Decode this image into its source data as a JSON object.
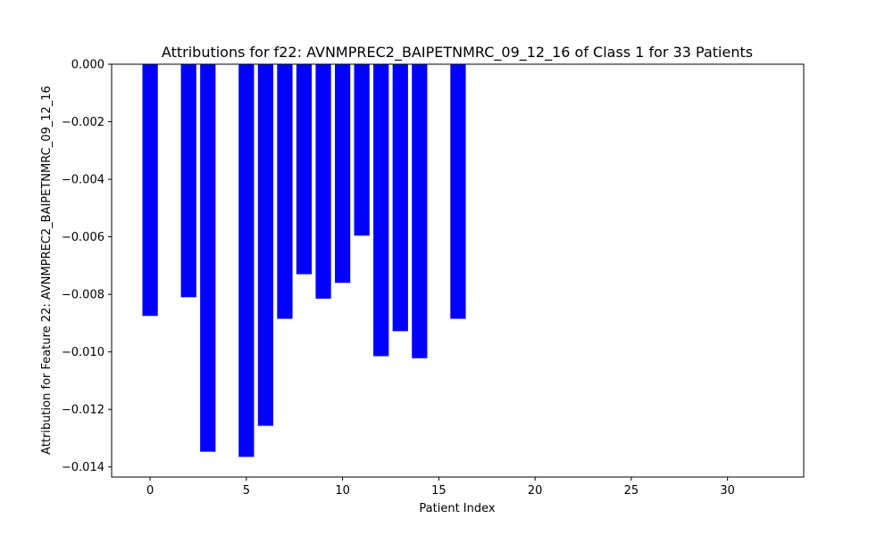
{
  "chart_data": {
    "type": "bar",
    "title": "Attributions for f22: AVNMPREC2_BAIPETNMRC_09_12_16 of Class 1 for 33 Patients",
    "xlabel": "Patient Index",
    "ylabel": "Attribution for Feature 22: AVNMPREC2_BAIPETNMRC_09_12_16",
    "xlim": [
      -2,
      33.96
    ],
    "ylim": [
      -0.01435,
      0.0
    ],
    "xticks": [
      0,
      5,
      10,
      15,
      20,
      25,
      30
    ],
    "yticks": [
      0.0,
      -0.002,
      -0.004,
      -0.006,
      -0.008,
      -0.01,
      -0.012,
      -0.014
    ],
    "ytick_labels": [
      "0.000",
      "−0.002",
      "−0.004",
      "−0.006",
      "−0.008",
      "−0.010",
      "−0.012",
      "−0.014"
    ],
    "bar_width": 0.8,
    "color": "#0000ff",
    "grid": false,
    "bars": [
      {
        "x": 0,
        "value": -0.00875
      },
      {
        "x": 1,
        "value": 0.0
      },
      {
        "x": 2,
        "value": -0.0081
      },
      {
        "x": 3,
        "value": -0.01347
      },
      {
        "x": 4,
        "value": 0.0
      },
      {
        "x": 5,
        "value": -0.01365
      },
      {
        "x": 6,
        "value": -0.01257
      },
      {
        "x": 7,
        "value": -0.00885
      },
      {
        "x": 8,
        "value": -0.0073
      },
      {
        "x": 9,
        "value": -0.00815
      },
      {
        "x": 10,
        "value": -0.0076
      },
      {
        "x": 11,
        "value": -0.00596
      },
      {
        "x": 12,
        "value": -0.01015
      },
      {
        "x": 13,
        "value": -0.00928
      },
      {
        "x": 14,
        "value": -0.01022
      },
      {
        "x": 15,
        "value": 0.0
      },
      {
        "x": 16,
        "value": -0.00885
      },
      {
        "x": 17,
        "value": 0.0
      },
      {
        "x": 18,
        "value": 0.0
      },
      {
        "x": 19,
        "value": 0.0
      },
      {
        "x": 20,
        "value": 0.0
      },
      {
        "x": 21,
        "value": 0.0
      },
      {
        "x": 22,
        "value": 0.0
      },
      {
        "x": 23,
        "value": 0.0
      },
      {
        "x": 24,
        "value": 0.0
      },
      {
        "x": 25,
        "value": 0.0
      },
      {
        "x": 26,
        "value": 0.0
      },
      {
        "x": 27,
        "value": 0.0
      },
      {
        "x": 28,
        "value": 0.0
      },
      {
        "x": 29,
        "value": 0.0
      },
      {
        "x": 30,
        "value": 0.0
      },
      {
        "x": 31,
        "value": 0.0
      },
      {
        "x": 32,
        "value": 0.0
      }
    ]
  }
}
